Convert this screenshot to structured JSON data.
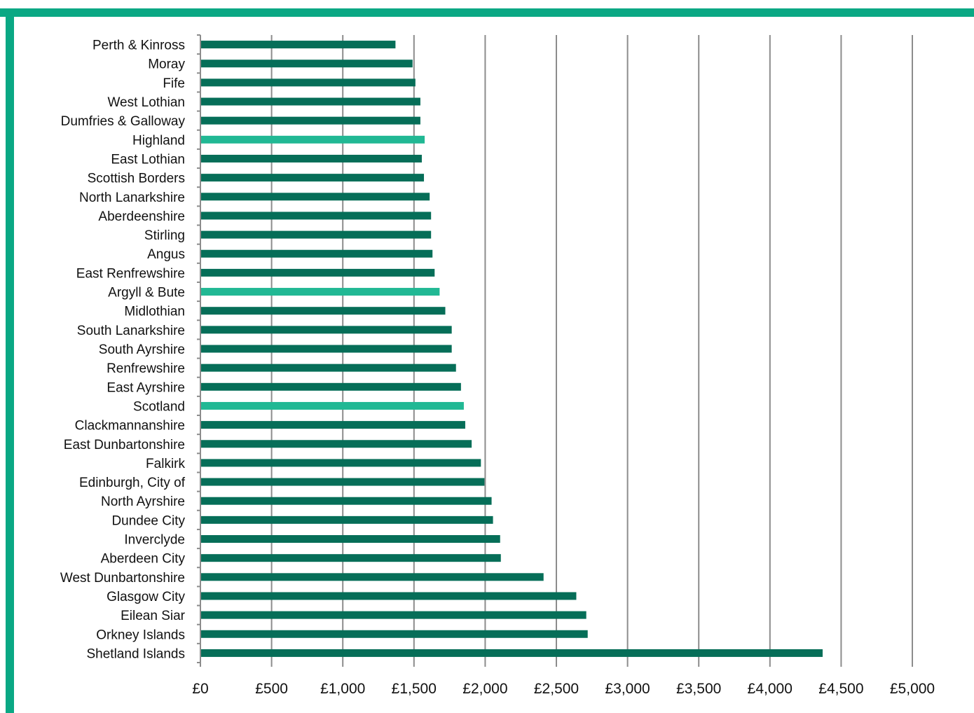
{
  "colors": {
    "frame": "#0aa884",
    "bar": "#066e58",
    "highlight": "#21b894",
    "grid": "#8c8c8c"
  },
  "chart_data": {
    "type": "bar",
    "orientation": "horizontal",
    "title": "",
    "xlabel": "",
    "ylabel": "",
    "xlim": [
      0,
      5000
    ],
    "x_ticks": [
      0,
      500,
      1000,
      1500,
      2000,
      2500,
      3000,
      3500,
      4000,
      4500,
      5000
    ],
    "x_tick_labels": [
      "£0",
      "£500",
      "£1,000",
      "£1,500",
      "£2,000",
      "£2,500",
      "£3,000",
      "£3,500",
      "£4,000",
      "£4,500",
      "£5,000"
    ],
    "grid": "vertical",
    "legend": "none",
    "categories": [
      "Perth & Kinross",
      "Moray",
      "Fife",
      "West Lothian",
      "Dumfries & Galloway",
      "Highland",
      "East Lothian",
      "Scottish Borders",
      "North Lanarkshire",
      "Aberdeenshire",
      "Stirling",
      "Angus",
      "East Renfrewshire",
      "Argyll & Bute",
      "Midlothian",
      "South Lanarkshire",
      "South Ayrshire",
      "Renfrewshire",
      "East Ayrshire",
      "Scotland",
      "Clackmannanshire",
      "East Dunbartonshire",
      "Falkirk",
      "Edinburgh, City of",
      "North Ayrshire",
      "Dundee City",
      "Inverclyde",
      "Aberdeen City",
      "West Dunbartonshire",
      "Glasgow City",
      "Eilean Siar",
      "Orkney Islands",
      "Shetland Islands"
    ],
    "values": [
      1370,
      1490,
      1510,
      1545,
      1545,
      1575,
      1555,
      1570,
      1610,
      1620,
      1620,
      1630,
      1645,
      1680,
      1720,
      1765,
      1765,
      1795,
      1830,
      1850,
      1860,
      1905,
      1970,
      1995,
      2045,
      2055,
      2105,
      2110,
      2410,
      2640,
      2710,
      2720,
      4370
    ],
    "highlighted": [
      "Highland",
      "Argyll & Bute",
      "Scotland"
    ]
  }
}
